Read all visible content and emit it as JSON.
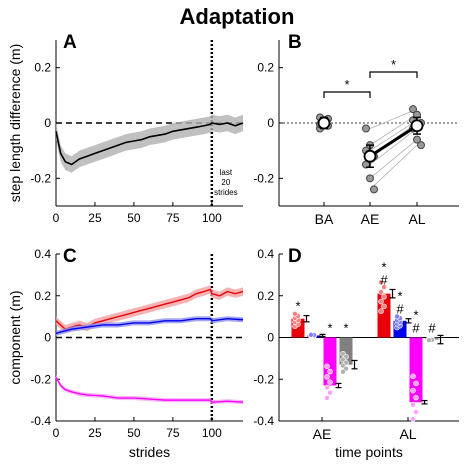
{
  "figure_title": "Adaptation",
  "chart_data": [
    {
      "panel": "A",
      "type": "line",
      "ylabel": "step length difference (m)",
      "xlabel": "",
      "xlim": [
        0,
        120
      ],
      "ylim": [
        -0.3,
        0.3
      ],
      "xticks": [
        "0",
        "25",
        "50",
        "75",
        "100"
      ],
      "yticks": [
        "-0.2",
        "0",
        "0.2"
      ],
      "annotation_lines": [
        "last",
        "20",
        "strides"
      ],
      "series": [
        {
          "color": "#000000",
          "band_color": "#b0b0b0",
          "x": [
            0,
            3,
            6,
            10,
            15,
            20,
            25,
            30,
            35,
            40,
            45,
            50,
            55,
            60,
            65,
            70,
            75,
            80,
            85,
            90,
            95,
            99,
            100,
            105,
            110,
            115,
            120
          ],
          "y": [
            -0.03,
            -0.11,
            -0.14,
            -0.15,
            -0.13,
            -0.12,
            -0.11,
            -0.1,
            -0.09,
            -0.08,
            -0.07,
            -0.065,
            -0.06,
            -0.05,
            -0.045,
            -0.04,
            -0.03,
            -0.025,
            -0.02,
            -0.015,
            -0.01,
            -0.005,
            0.0,
            -0.005,
            0.0,
            -0.01,
            0.0
          ],
          "ci": 0.03
        }
      ],
      "reference_lines": [
        {
          "axis": "y",
          "value": 0,
          "style": "dashed"
        },
        {
          "axis": "x",
          "value": 100,
          "style": "dotted"
        }
      ]
    },
    {
      "panel": "B",
      "type": "scatter",
      "categories": [
        "BA",
        "AE",
        "AL"
      ],
      "ylim": [
        -0.3,
        0.3
      ],
      "yticks": [
        "-0.2",
        "0",
        "0.2"
      ],
      "means": [
        0.0,
        -0.12,
        -0.01
      ],
      "errors": [
        0.02,
        0.04,
        0.03
      ],
      "points": [
        [
          0.02,
          0.01,
          -0.01,
          -0.02,
          0.0,
          0.015,
          -0.005
        ],
        [
          -0.02,
          -0.08,
          -0.12,
          -0.15,
          -0.2,
          -0.24,
          -0.1
        ],
        [
          0.05,
          0.03,
          0.0,
          -0.02,
          -0.06,
          -0.08,
          0.01
        ]
      ],
      "significance": [
        {
          "from": "BA",
          "to": "AE",
          "label": "*"
        },
        {
          "from": "AE",
          "to": "AL",
          "label": "*"
        }
      ]
    },
    {
      "panel": "C",
      "type": "line",
      "ylabel": "component (m)",
      "xlabel": "strides",
      "xlim": [
        0,
        120
      ],
      "ylim": [
        -0.4,
        0.4
      ],
      "xticks": [
        "0",
        "25",
        "50",
        "75",
        "100"
      ],
      "yticks": [
        "-0.4",
        "-0.2",
        "0",
        "0.2",
        "0.4"
      ],
      "series": [
        {
          "color": "#e8000b",
          "band_color": "#f4a0a0",
          "x": [
            0,
            3,
            6,
            10,
            15,
            20,
            25,
            30,
            35,
            40,
            45,
            50,
            55,
            60,
            65,
            70,
            75,
            80,
            85,
            90,
            95,
            99,
            100,
            105,
            110,
            115,
            120
          ],
          "y": [
            0.08,
            0.06,
            0.04,
            0.05,
            0.06,
            0.05,
            0.07,
            0.08,
            0.09,
            0.1,
            0.11,
            0.12,
            0.13,
            0.14,
            0.15,
            0.16,
            0.17,
            0.18,
            0.19,
            0.21,
            0.22,
            0.23,
            0.21,
            0.2,
            0.22,
            0.21,
            0.22
          ],
          "ci": 0.02
        },
        {
          "color": "#0000ee",
          "band_color": "#9090f0",
          "x": [
            0,
            5,
            10,
            20,
            30,
            40,
            50,
            60,
            70,
            80,
            90,
            99,
            100,
            110,
            120
          ],
          "y": [
            0.02,
            0.03,
            0.04,
            0.05,
            0.06,
            0.06,
            0.07,
            0.07,
            0.08,
            0.08,
            0.09,
            0.09,
            0.08,
            0.09,
            0.085
          ],
          "ci": 0.012
        },
        {
          "color": "#ff00ff",
          "band_color": "#f4a8f4",
          "x": [
            0,
            3,
            6,
            10,
            15,
            20,
            30,
            40,
            50,
            60,
            70,
            80,
            90,
            99,
            100,
            110,
            120
          ],
          "y": [
            -0.19,
            -0.23,
            -0.25,
            -0.26,
            -0.27,
            -0.275,
            -0.28,
            -0.29,
            -0.29,
            -0.295,
            -0.3,
            -0.3,
            -0.3,
            -0.3,
            -0.31,
            -0.305,
            -0.31
          ],
          "ci": 0.01
        }
      ],
      "reference_lines": [
        {
          "axis": "y",
          "value": 0,
          "style": "dashed"
        },
        {
          "axis": "x",
          "value": 100,
          "style": "dotted"
        }
      ]
    },
    {
      "panel": "D",
      "type": "bar",
      "xlabel": "time points",
      "groups": [
        "AE",
        "AL"
      ],
      "ylim": [
        -0.4,
        0.4
      ],
      "yticks": [
        "-0.4",
        "-0.2",
        "0",
        "0.2",
        "0.4"
      ],
      "bars": [
        {
          "group": "AE",
          "color": "#e8000b",
          "value": 0.09,
          "error": 0.015,
          "marks": [
            "*"
          ]
        },
        {
          "group": "AE",
          "color": "#0000ee",
          "value": 0.01,
          "error": 0.005,
          "marks": []
        },
        {
          "group": "AE",
          "color": "#ff00ff",
          "value": -0.23,
          "error": 0.01,
          "marks": [
            "*"
          ]
        },
        {
          "group": "AE",
          "color": "#808080",
          "value": -0.13,
          "error": 0.02,
          "marks": [
            "*"
          ]
        },
        {
          "group": "AL",
          "color": "#e8000b",
          "value": 0.21,
          "error": 0.02,
          "marks": [
            "*",
            "#"
          ]
        },
        {
          "group": "AL",
          "color": "#0000ee",
          "value": 0.08,
          "error": 0.01,
          "marks": [
            "*",
            "#"
          ]
        },
        {
          "group": "AL",
          "color": "#ff00ff",
          "value": -0.31,
          "error": 0.008,
          "marks": [
            "*",
            "#"
          ]
        },
        {
          "group": "AL",
          "color": "#808080",
          "value": -0.01,
          "error": 0.02,
          "marks": [
            "#"
          ]
        }
      ]
    }
  ]
}
